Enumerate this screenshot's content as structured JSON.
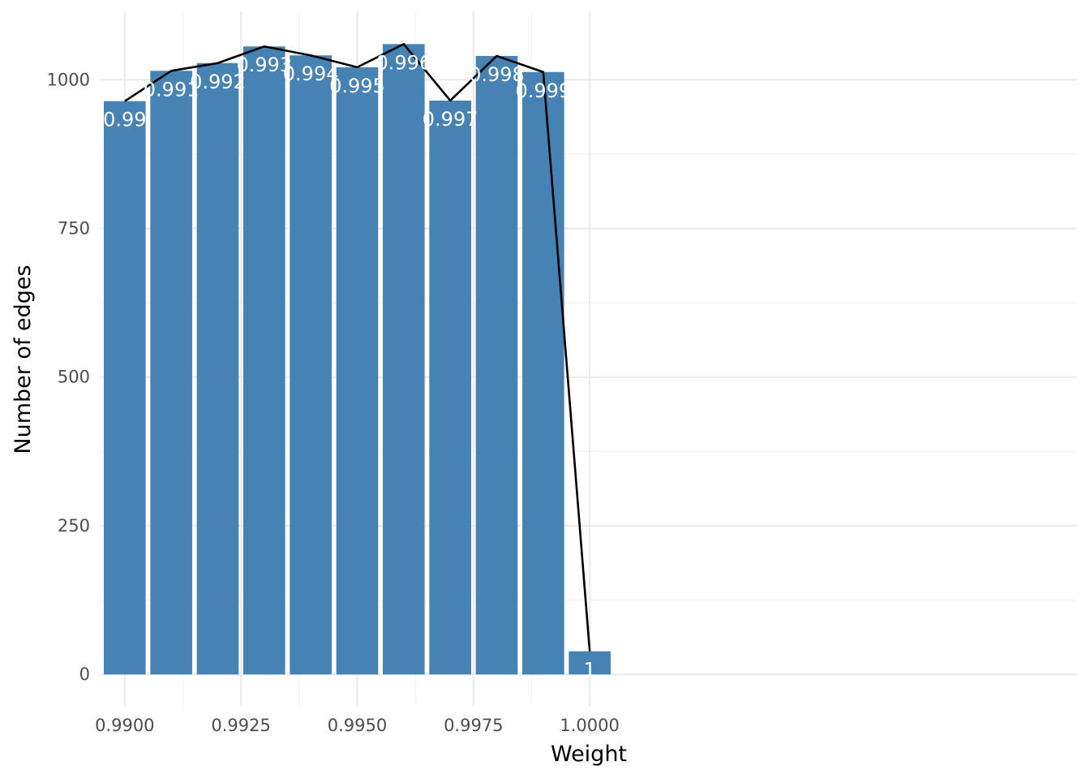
{
  "chart_data": {
    "type": "bar",
    "xlabel": "Weight",
    "ylabel": "Number of edges",
    "x": [
      0.99,
      0.991,
      0.992,
      0.993,
      0.994,
      0.995,
      0.996,
      0.997,
      0.998,
      0.999,
      1.0
    ],
    "bar_labels": [
      "0.99",
      "0.991",
      "0.992",
      "0.993",
      "0.994",
      "0.995",
      "0.996",
      "0.997",
      "0.998",
      "0.999",
      "1"
    ],
    "values": [
      964,
      1015,
      1028,
      1056,
      1041,
      1021,
      1060,
      965,
      1040,
      1013,
      39
    ],
    "overlay_line": {
      "type": "line",
      "values": [
        964,
        1015,
        1028,
        1056,
        1041,
        1021,
        1060,
        965,
        1040,
        1013,
        39
      ]
    },
    "x_ticks": [
      "0.9900",
      "0.9925",
      "0.9950",
      "0.9975",
      "1.0000"
    ],
    "x_tick_values": [
      0.99,
      0.9925,
      0.995,
      0.9975,
      1.0
    ],
    "y_ticks": [
      "0",
      "250",
      "500",
      "750",
      "1000"
    ],
    "y_tick_values": [
      0,
      250,
      500,
      750,
      1000
    ],
    "xlim": [
      0.98948,
      1.01048
    ],
    "ylim": [
      -53,
      1115
    ],
    "grid": true,
    "bar_color": "#4682b4",
    "line_color": "#000000"
  }
}
